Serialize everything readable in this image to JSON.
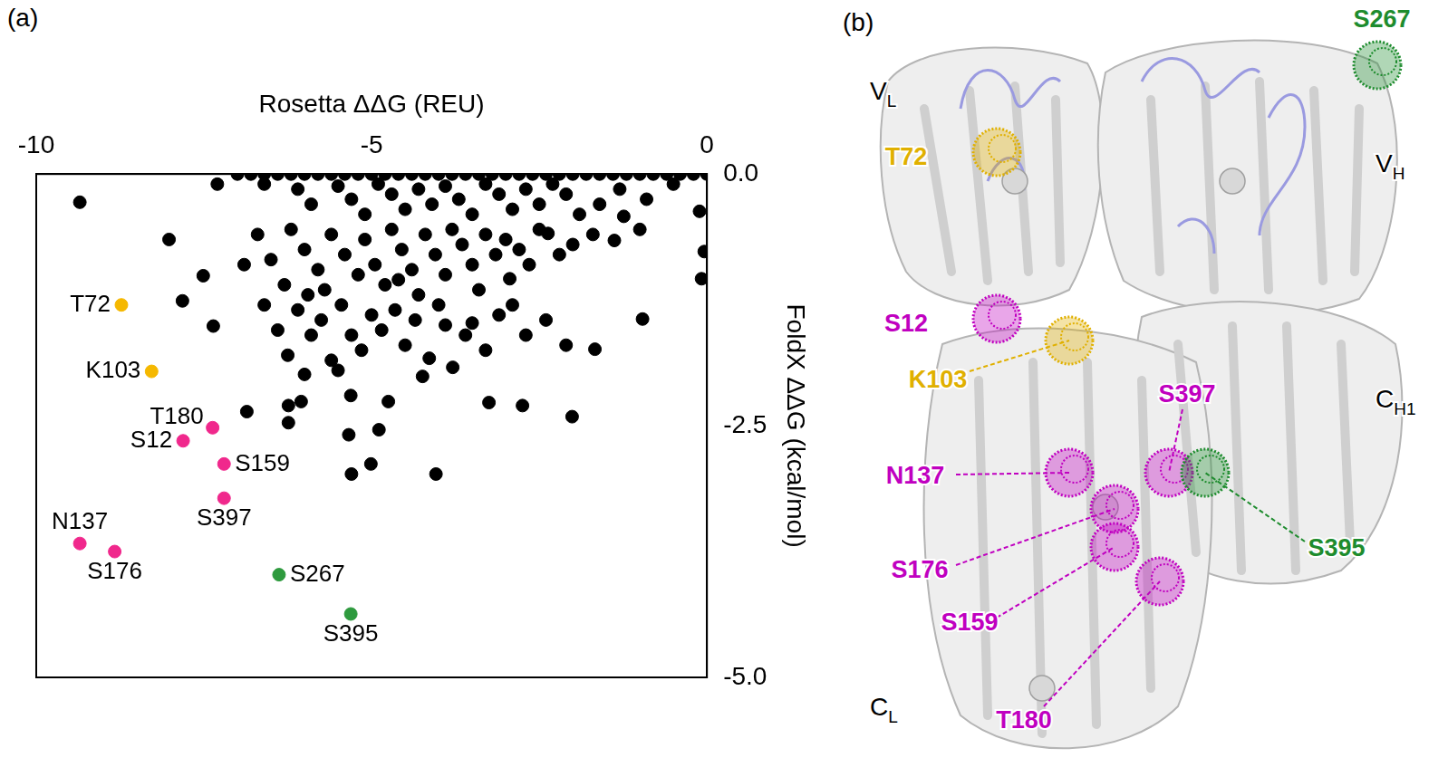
{
  "chart_data": {
    "type": "scatter",
    "panel_label": "(a)",
    "x_label": "Rosetta ΔΔG (REU)",
    "y_label": "FoldX ΔΔG (kcal/mol)",
    "xlim": [
      -10,
      0
    ],
    "xticks": [
      -10,
      -5,
      0
    ],
    "ylim": [
      -5,
      0
    ],
    "yticks": [
      {
        "value": 0,
        "label": "0.0"
      },
      {
        "value": -2.5,
        "label": "-2.5"
      },
      {
        "value": -5,
        "label": "-5.0"
      }
    ],
    "grid": false,
    "marker": "circle",
    "series": [
      {
        "color": "#000000",
        "x": [
          -7.0,
          -6.8,
          -6.6,
          -6.4,
          -6.2,
          -6.0,
          -5.8,
          -5.6,
          -5.4,
          -5.2,
          -5.0,
          -4.8,
          -4.6,
          -4.4,
          -4.2,
          -4.0,
          -3.8,
          -3.6,
          -3.4,
          -3.2,
          -3.0,
          -2.8,
          -2.6,
          -2.4,
          -2.2,
          -2.0,
          -1.8,
          -1.6,
          -1.4,
          -1.2,
          -1.0,
          -0.8,
          -0.6,
          -0.4,
          -0.2,
          0,
          -9.35,
          -6.6,
          -6.1,
          -5.9,
          -5.5,
          -5.3,
          -5.1,
          -4.9,
          -4.7,
          -4.5,
          -4.3,
          -4.1,
          -3.9,
          -3.7,
          -3.5,
          -3.3,
          -3.1,
          -2.9,
          -2.7,
          -2.5,
          -2.3,
          -2.1,
          -1.9,
          -1.6,
          -1.3,
          -0.9,
          -0.5,
          -0.11,
          -1.24,
          -7.3,
          -8.02,
          -7.51,
          -7.82,
          -6.7,
          -6.5,
          -6.3,
          -6.2,
          -6.0,
          -5.8,
          -5.7,
          -5.6,
          -5.4,
          -5.2,
          -5.1,
          -4.95,
          -4.8,
          -4.7,
          -4.55,
          -4.4,
          -4.3,
          -4.2,
          -4.05,
          -3.9,
          -3.8,
          -3.65,
          -3.5,
          -3.4,
          -3.3,
          -3.15,
          -3.0,
          -2.94,
          -2.8,
          -2.65,
          -2.5,
          -2.37,
          -2.2,
          -2.0,
          -1.7,
          -1.38,
          -0.04,
          -0.08,
          -1.0,
          -6.9,
          -5.95,
          -4.6,
          -7.36,
          -6.6,
          -6.4,
          -6.25,
          -6.1,
          -5.9,
          -5.75,
          -5.6,
          -5.45,
          -5.3,
          -5.15,
          -5.0,
          -4.85,
          -4.65,
          -4.5,
          -4.35,
          -4.14,
          -4.0,
          -3.79,
          -3.6,
          -3.5,
          -3.3,
          -3.1,
          -2.9,
          -2.7,
          -2.4,
          -2.1,
          -1.67,
          -0.96,
          -6.0,
          -4.24,
          -3.9,
          -5.5,
          -6.86,
          -6.24,
          -6.24,
          -6.05,
          -5.31,
          -5.34,
          -4.89,
          -4.75,
          -3.25,
          -2.75,
          -2.01,
          -5.3,
          -5.01,
          -4.04
        ],
        "values": [
          0,
          0,
          0,
          0,
          0,
          0,
          0,
          0,
          0,
          0,
          0,
          0,
          0,
          0,
          0,
          0,
          0,
          0,
          0,
          0,
          0,
          0,
          0,
          0,
          0,
          0,
          0,
          0,
          0,
          0,
          0,
          0,
          0,
          0,
          0,
          0,
          -0.28,
          -0.1,
          -0.15,
          -0.3,
          -0.12,
          -0.25,
          -0.4,
          -0.1,
          -0.2,
          -0.35,
          -0.15,
          -0.3,
          -0.12,
          -0.25,
          -0.4,
          -0.1,
          -0.2,
          -0.35,
          -0.15,
          -0.3,
          -0.1,
          -0.2,
          -0.4,
          -0.3,
          -0.15,
          -0.25,
          -0.1,
          -0.37,
          -0.42,
          -0.1,
          -0.65,
          -1.01,
          -1.26,
          -0.6,
          -0.85,
          -1.1,
          -0.55,
          -0.75,
          -0.95,
          -1.15,
          -0.6,
          -0.8,
          -1.0,
          -0.65,
          -0.9,
          -1.1,
          -0.55,
          -0.75,
          -0.95,
          -1.2,
          -0.6,
          -0.8,
          -1.0,
          -0.55,
          -0.7,
          -0.9,
          -1.15,
          -0.6,
          -0.8,
          -0.65,
          -1.04,
          -0.75,
          -0.9,
          -0.55,
          -0.59,
          -0.8,
          -0.7,
          -0.6,
          -0.66,
          -0.77,
          -1.04,
          -0.55,
          -0.9,
          -1.2,
          -1.05,
          -1.51,
          -1.3,
          -1.55,
          -1.8,
          -1.35,
          -1.6,
          -1.45,
          -1.85,
          -1.3,
          -1.6,
          -1.75,
          -1.4,
          -1.55,
          -1.35,
          -1.7,
          -1.45,
          -1.83,
          -1.3,
          -1.92,
          -1.6,
          -1.48,
          -1.75,
          -1.4,
          -1.3,
          -1.6,
          -1.45,
          -1.7,
          -1.74,
          -1.44,
          -1.99,
          -2.01,
          -1.5,
          -1.95,
          -2.36,
          -2.47,
          -2.3,
          -2.26,
          -2.2,
          -2.59,
          -2.54,
          -2.26,
          -2.27,
          -2.3,
          -2.41,
          -2.98,
          -2.88,
          -2.98
        ]
      },
      {
        "color": "#f5b800",
        "x": [
          -8.73,
          -8.28
        ],
        "values": [
          -1.3,
          -1.96
        ],
        "labels": [
          "T72",
          "K103"
        ]
      },
      {
        "color": "#f0288c",
        "x": [
          -7.37,
          -7.81,
          -7.2,
          -7.2,
          -9.35,
          -8.83
        ],
        "values": [
          -2.52,
          -2.65,
          -2.88,
          -3.22,
          -3.67,
          -3.75
        ],
        "labels": [
          "T180",
          "S12",
          "S159",
          "S397",
          "N137",
          "S176"
        ]
      },
      {
        "color": "#2e9a3e",
        "x": [
          -6.38,
          -5.31
        ],
        "values": [
          -3.98,
          -4.37
        ],
        "labels": [
          "S267",
          "S395"
        ]
      }
    ]
  },
  "structure": {
    "panel_label": "(b)",
    "domains": [
      {
        "text": "V",
        "subscript": "L"
      },
      {
        "text": "V",
        "subscript": "H"
      },
      {
        "text": "C",
        "subscript": "H1"
      },
      {
        "text": "C",
        "subscript": "L"
      }
    ],
    "residues": [
      {
        "label": "T72",
        "color": "#e0b000"
      },
      {
        "label": "S267",
        "color": "#1e8c2e"
      },
      {
        "label": "S12",
        "color": "#c000c0"
      },
      {
        "label": "K103",
        "color": "#e0b000"
      },
      {
        "label": "S397",
        "color": "#c000c0"
      },
      {
        "label": "N137",
        "color": "#c000c0"
      },
      {
        "label": "S176",
        "color": "#c000c0"
      },
      {
        "label": "S159",
        "color": "#c000c0"
      },
      {
        "label": "T180",
        "color": "#c000c0"
      },
      {
        "label": "S395",
        "color": "#1e8c2e"
      }
    ]
  }
}
